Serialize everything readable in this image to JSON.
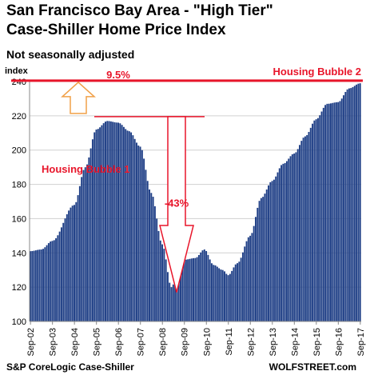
{
  "chart_data": {
    "type": "bar",
    "title_line1": "San Francisco Bay Area - \"High Tier\"",
    "title_line2": "Case-Shiller Home Price Index",
    "subtitle": "Not seasonally adjusted",
    "ylabel": "index",
    "ylim": [
      100,
      240
    ],
    "yticks": [
      100,
      120,
      140,
      160,
      180,
      200,
      220,
      240
    ],
    "x_tick_labels": [
      "Sep-02",
      "Sep-03",
      "Sep-04",
      "Sep-05",
      "Sep-06",
      "Sep-07",
      "Sep-08",
      "Sep-09",
      "Sep-10",
      "Sep-11",
      "Sep-12",
      "Sep-13",
      "Sep-14",
      "Sep-15",
      "Sep-16",
      "Sep-17"
    ],
    "grid": "horizontal",
    "bar_color": "#1f3f86",
    "accent_color": "#e8152a",
    "arrow_color": "#f0a048",
    "monthly_start": "Sep-02",
    "monthly_end": "Sep-17",
    "series_knots": [
      [
        "Sep-02",
        141
      ],
      [
        "Mar-03",
        142
      ],
      [
        "Sep-03",
        147
      ],
      [
        "Sep-04",
        168
      ],
      [
        "Mar-05",
        190
      ],
      [
        "Sep-05",
        212
      ],
      [
        "Mar-06",
        217
      ],
      [
        "Sep-06",
        216
      ],
      [
        "Mar-07",
        211
      ],
      [
        "Sep-07",
        202
      ],
      [
        "Mar-08",
        175
      ],
      [
        "Sep-08",
        145
      ],
      [
        "Feb-09",
        120
      ],
      [
        "Jun-09",
        130
      ],
      [
        "Sep-09",
        136
      ],
      [
        "Mar-10",
        137
      ],
      [
        "Aug-10",
        142
      ],
      [
        "Jan-11",
        133
      ],
      [
        "Jun-11",
        130
      ],
      [
        "Sep-11",
        127
      ],
      [
        "Feb-12",
        134
      ],
      [
        "Sep-12",
        150
      ],
      [
        "Mar-13",
        172
      ],
      [
        "Sep-13",
        182
      ],
      [
        "Mar-14",
        192
      ],
      [
        "Sep-14",
        198
      ],
      [
        "Mar-15",
        208
      ],
      [
        "Sep-15",
        218
      ],
      [
        "Mar-16",
        227
      ],
      [
        "Sep-16",
        228
      ],
      [
        "Mar-17",
        236
      ],
      [
        "Sep-17",
        239
      ]
    ],
    "annotations": {
      "bubble1_label": "Housing Bubble 1",
      "bubble2_label": "Housing Bubble 2",
      "rise_pct": "9.5%",
      "drop_pct": "-43%",
      "peak1_level": 219.5,
      "peak2_level": 240.5,
      "trough_level": 117
    },
    "source": "S&P CoreLogic Case-Shiller",
    "brand": "WOLFSTREET.com"
  }
}
